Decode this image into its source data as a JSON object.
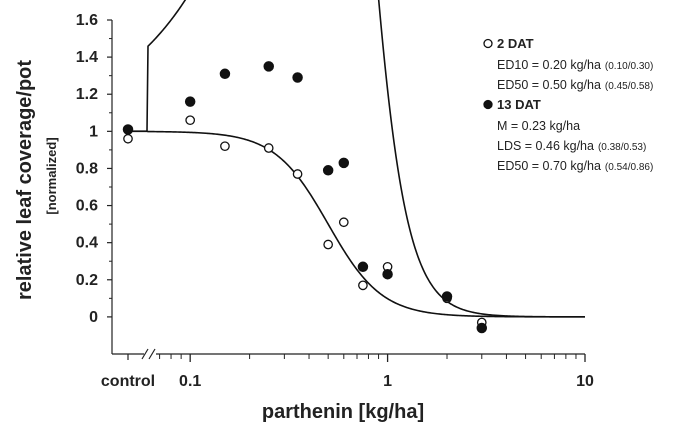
{
  "chart_data": {
    "type": "scatter",
    "x_scale": "log",
    "xlabel": "parthenin [kg/ha]",
    "ylabel": "relative leaf coverage/pot",
    "ylabel_sub": "[normalized]",
    "xlim": [
      0.04,
      10
    ],
    "ylim": [
      -0.2,
      1.6
    ],
    "x_ticks": [
      {
        "value": "control",
        "label": "control"
      },
      {
        "value": 0.1,
        "label": "0.1"
      },
      {
        "value": 1,
        "label": "1"
      },
      {
        "value": 10,
        "label": "10"
      }
    ],
    "y_ticks": [
      0,
      0.2,
      0.4,
      0.6,
      0.8,
      1,
      1.2,
      1.4,
      1.6
    ],
    "y_tick_labels": [
      "0",
      "0.2",
      "0.4",
      "0.6",
      "0.8",
      "1",
      "1.2",
      "1.4",
      "1.6"
    ],
    "series": [
      {
        "name": "2 DAT",
        "marker": "open-circle",
        "control": 0.96,
        "points": [
          [
            0.1,
            1.06
          ],
          [
            0.15,
            0.92
          ],
          [
            0.25,
            0.91
          ],
          [
            0.35,
            0.77
          ],
          [
            0.5,
            0.39
          ],
          [
            0.6,
            0.51
          ],
          [
            0.75,
            0.17
          ],
          [
            1.0,
            0.27
          ],
          [
            2.0,
            0.1
          ],
          [
            3.0,
            -0.03
          ]
        ],
        "fit": {
          "model": "log-logistic",
          "upper": 1.0,
          "ed50": 0.5,
          "slope": 3.2
        }
      },
      {
        "name": "13 DAT",
        "marker": "filled-circle",
        "control": 1.01,
        "points": [
          [
            0.1,
            1.16
          ],
          [
            0.15,
            1.31
          ],
          [
            0.25,
            1.35
          ],
          [
            0.35,
            1.29
          ],
          [
            0.5,
            0.79
          ],
          [
            0.6,
            0.83
          ],
          [
            0.75,
            0.27
          ],
          [
            1.0,
            0.23
          ],
          [
            2.0,
            0.11
          ],
          [
            3.0,
            -0.06
          ]
        ],
        "fit": {
          "model": "brain-cousens hormesis",
          "upper": 1.0,
          "f": 7.5,
          "e": 0.7,
          "b": 5
        }
      }
    ],
    "legend": {
      "placement": "top-right",
      "entries": [
        {
          "marker": "open-circle",
          "title": "2 DAT",
          "lines": [
            {
              "text": "ED10 = 0.20 kg/ha",
              "ci": "(0.10/0.30)"
            },
            {
              "text": "ED50 = 0.50 kg/ha",
              "ci": "(0.45/0.58)"
            }
          ]
        },
        {
          "marker": "filled-circle",
          "title": "13 DAT",
          "lines": [
            {
              "text": "M = 0.23 kg/ha",
              "ci": ""
            },
            {
              "text": "LDS = 0.46 kg/ha",
              "ci": "(0.38/0.53)"
            },
            {
              "text": "ED50 = 0.70 kg/ha",
              "ci": "(0.54/0.86)"
            }
          ]
        }
      ]
    },
    "grid": false,
    "axis_break": "//"
  }
}
